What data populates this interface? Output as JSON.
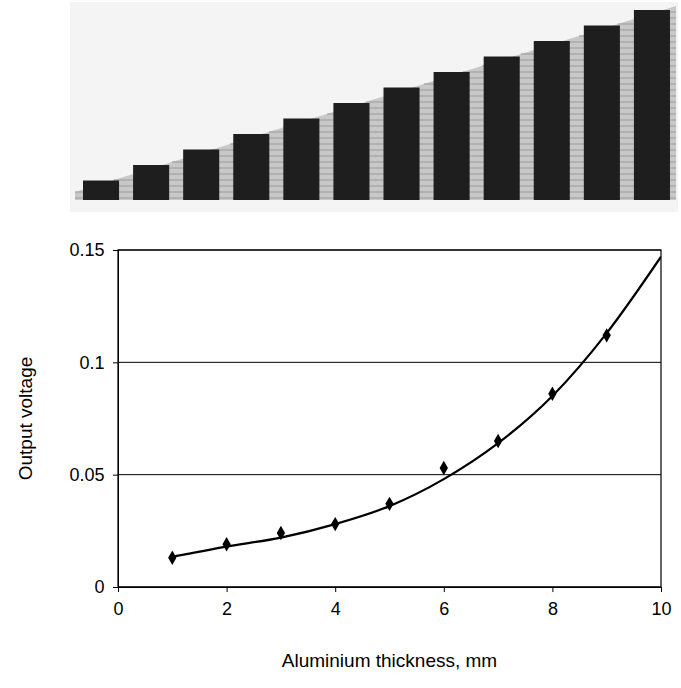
{
  "chart_data": {
    "type": "scatter",
    "x_label": "Aluminium thickness, mm",
    "y_label": "Output voltage",
    "xlim": [
      0,
      10
    ],
    "xticks": [
      0,
      2,
      4,
      6,
      8,
      10
    ],
    "ylim": [
      0,
      0.15
    ],
    "yticks": [
      0,
      0.05,
      0.1,
      0.15
    ],
    "grid": "y",
    "series": [
      {
        "type": "scatter",
        "color": "#000000",
        "marker": "diamond",
        "line_style": "none",
        "x": [
          1,
          2,
          3,
          4,
          5,
          6,
          7,
          8,
          9
        ],
        "values": [
          0.013,
          0.019,
          0.024,
          0.028,
          0.037,
          0.053,
          0.065,
          0.086,
          0.112
        ]
      },
      {
        "type": "line",
        "color": "#000000",
        "marker": "none",
        "line_style": "solid",
        "x": [
          1,
          2,
          3,
          4,
          5,
          6,
          7,
          8,
          9,
          10
        ],
        "values": [
          0.0135,
          0.018,
          0.022,
          0.028,
          0.036,
          0.048,
          0.064,
          0.085,
          0.113,
          0.147
        ]
      }
    ]
  }
}
